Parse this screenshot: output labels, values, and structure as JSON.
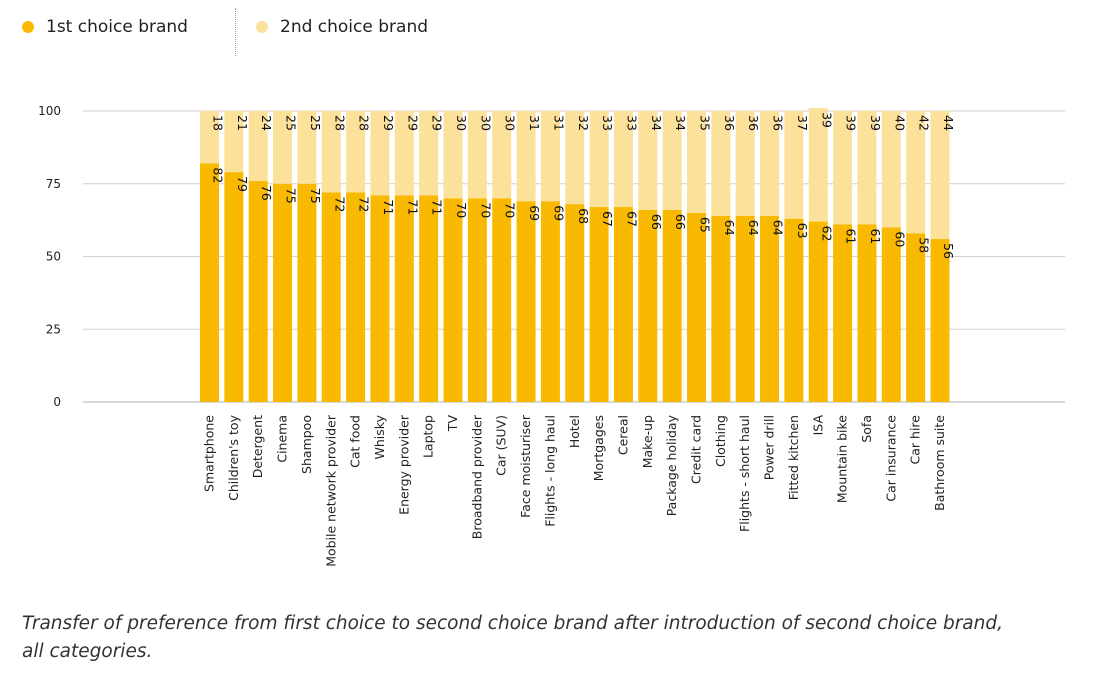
{
  "chart_data": {
    "type": "bar",
    "stacked": true,
    "categories": [
      "Smartphone",
      "Children's toy",
      "Detergent",
      "Cinema",
      "Shampoo",
      "Mobile network provider",
      "Cat food",
      "Whisky",
      "Energy provider",
      "Laptop",
      "TV",
      "Broadband provider",
      "Car (SUV)",
      "Face moisturiser",
      "Flights - long haul",
      "Hotel",
      "Mortgages",
      "Cereal",
      "Make-up",
      "Package holiday",
      "Credit card",
      "Clothing",
      "Flights - short haul",
      "Power drill",
      "Fitted kitchen",
      "ISA",
      "Mountain bike",
      "Sofa",
      "Car insurance",
      "Car hire",
      "Bathroom suite"
    ],
    "series": [
      {
        "name": "1st choice brand",
        "color": "#F9B900",
        "values": [
          82,
          79,
          76,
          75,
          75,
          72,
          72,
          71,
          71,
          71,
          70,
          70,
          70,
          69,
          69,
          68,
          67,
          67,
          66,
          66,
          65,
          64,
          64,
          64,
          63,
          62,
          61,
          61,
          60,
          58,
          56
        ]
      },
      {
        "name": "2nd choice brand",
        "color": "#FCE19B",
        "values": [
          18,
          21,
          24,
          25,
          25,
          28,
          28,
          29,
          29,
          29,
          30,
          30,
          30,
          31,
          31,
          32,
          33,
          33,
          34,
          34,
          35,
          36,
          36,
          36,
          37,
          39,
          39,
          39,
          40,
          42,
          44
        ]
      }
    ],
    "yticks": [
      0,
      25,
      50,
      75,
      100
    ],
    "ylim": [
      0,
      100
    ],
    "title": "",
    "xlabel": "",
    "ylabel": "",
    "legend_position": "top-left",
    "caption": "Transfer of preference from first choice to second choice brand after introduction of second choice brand, all categories."
  }
}
